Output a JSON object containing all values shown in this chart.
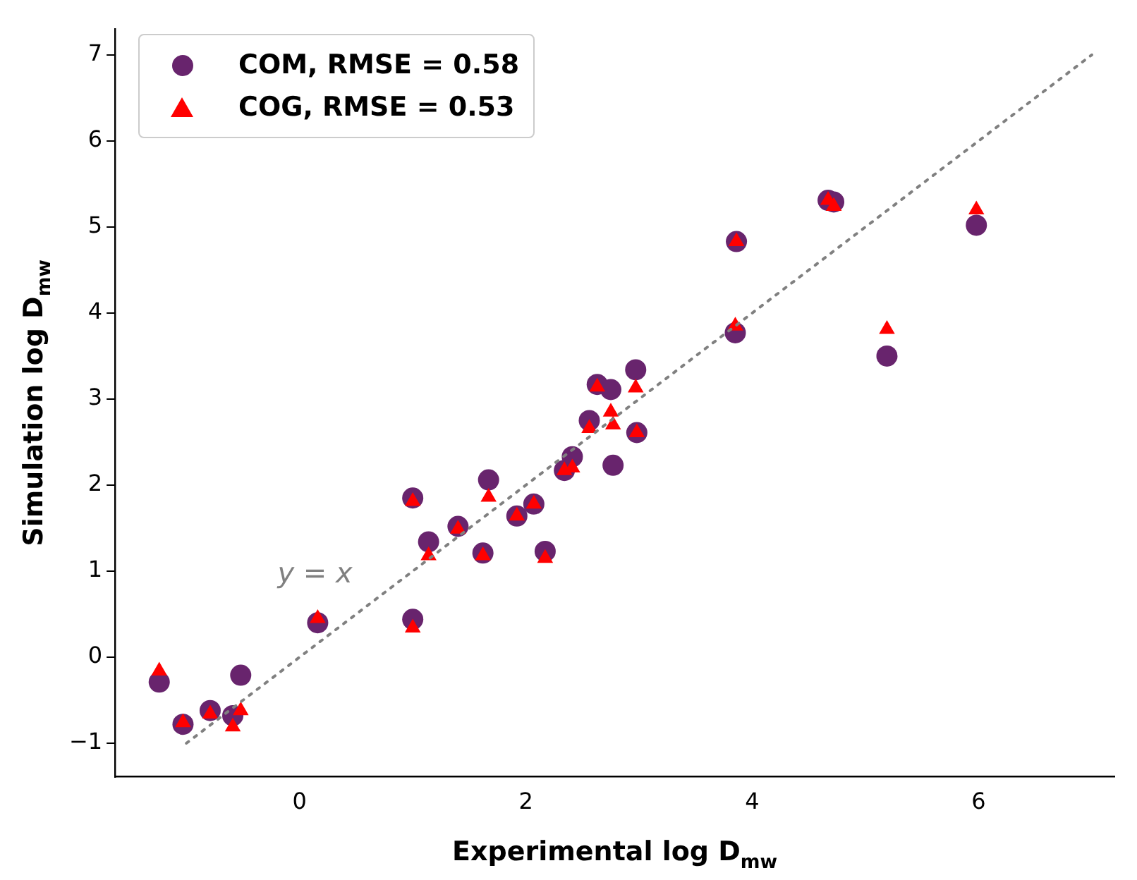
{
  "chart_data": {
    "type": "scatter",
    "xlabel": "Experimental log D$_{mw}$",
    "ylabel": "Simulation log D$_{mw}$",
    "x": [
      -1.24,
      -1.03,
      -0.79,
      -0.59,
      -0.52,
      0.16,
      1.0,
      1.0,
      1.14,
      1.4,
      1.62,
      1.67,
      1.92,
      2.07,
      2.17,
      2.34,
      2.41,
      2.56,
      2.63,
      2.75,
      2.77,
      2.97,
      2.98,
      3.86,
      3.85,
      4.67,
      4.72,
      5.19,
      5.98
    ],
    "series": [
      {
        "name": "COM, RMSE = 0.58",
        "color": "#68246d",
        "marker": "circle",
        "values": [
          -0.29,
          -0.78,
          -0.62,
          -0.68,
          -0.21,
          0.4,
          1.85,
          0.44,
          1.34,
          1.52,
          1.21,
          2.06,
          1.64,
          1.78,
          1.23,
          2.17,
          2.33,
          2.75,
          3.17,
          3.11,
          2.23,
          3.34,
          2.61,
          4.83,
          3.77,
          5.31,
          5.29,
          3.5,
          5.02
        ]
      },
      {
        "name": "COG, RMSE = 0.53",
        "color": "#ff0000",
        "marker": "triangle",
        "values": [
          -0.16,
          -0.76,
          -0.66,
          -0.81,
          -0.62,
          0.45,
          1.81,
          0.34,
          1.18,
          1.49,
          1.18,
          1.86,
          1.64,
          1.78,
          1.15,
          2.17,
          2.2,
          2.66,
          3.14,
          2.85,
          2.7,
          3.13,
          2.61,
          4.83,
          3.85,
          5.31,
          5.24,
          3.81,
          5.2
        ]
      },
      {
        "type": "line",
        "x": [
          -1,
          7
        ],
        "values": [
          -1,
          7
        ],
        "color": "#808080",
        "line_style": "dotted",
        "marker": "none"
      }
    ],
    "annotations": [
      "y = x"
    ],
    "xlim": [
      -1.63,
      7.2
    ],
    "ylim": [
      -1.39,
      7.3
    ],
    "xticks": [
      0,
      2,
      4,
      6
    ],
    "yticks": [
      {
        "value": -1,
        "label": "−1"
      },
      0,
      1,
      2,
      3,
      4,
      5,
      6,
      7
    ],
    "grid": false,
    "legend": "top left"
  }
}
